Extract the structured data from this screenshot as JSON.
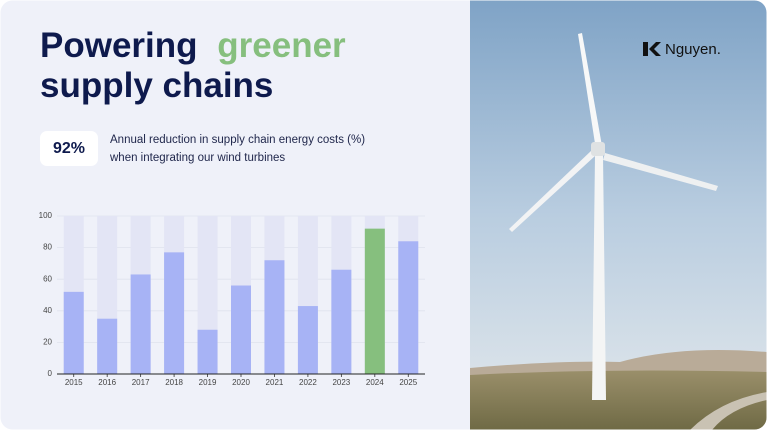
{
  "header": {
    "title": {
      "before": "Powering",
      "highlight": "greener",
      "after": "supply chains"
    },
    "stat": "92%",
    "stat_description": [
      "Annual reduction in supply chain energy costs (%)",
      "when integrating our wind turbines"
    ],
    "logo": "Nguyen."
  },
  "chart_data": {
    "type": "bar",
    "categories": [
      "2015",
      "2016",
      "2017",
      "2018",
      "2019",
      "2020",
      "2021",
      "2022",
      "2023",
      "2024",
      "2025"
    ],
    "values": [
      52,
      35,
      63,
      77,
      28,
      56,
      72,
      43,
      66,
      92,
      84
    ],
    "colors": [
      "#a7b3f5",
      "#a7b3f5",
      "#a7b3f5",
      "#a7b3f5",
      "#a7b3f5",
      "#a7b3f5",
      "#a7b3f5",
      "#a7b3f5",
      "#a7b3f5",
      "#86bf7e",
      "#a7b3f5"
    ],
    "ylim": [
      0,
      100
    ],
    "yticks": [
      0,
      20,
      40,
      60,
      80,
      100
    ],
    "grid": true
  }
}
